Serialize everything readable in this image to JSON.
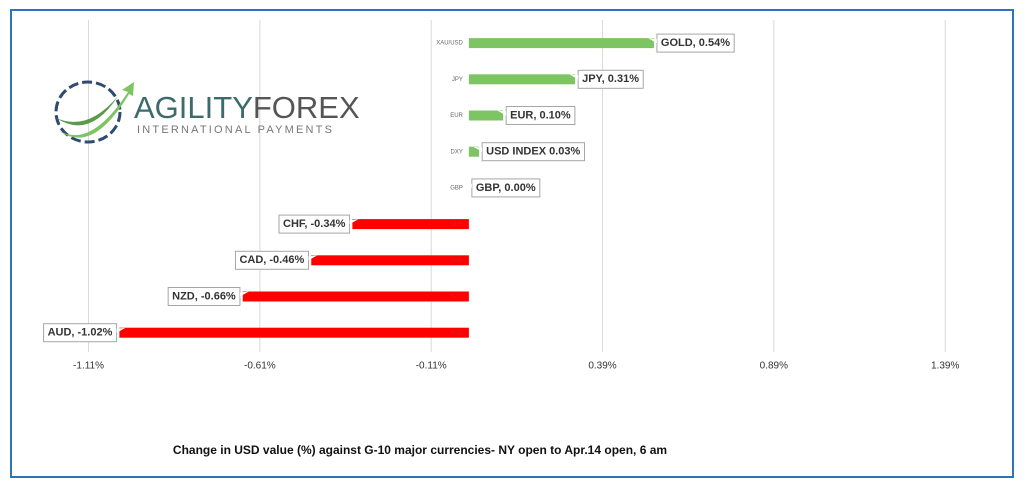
{
  "chart_data": {
    "type": "barh",
    "categories": [
      "XAU/USD",
      "JPY",
      "EUR",
      "DXY",
      "GBP",
      "CHF",
      "CAD",
      "NZD",
      "AUD"
    ],
    "values": [
      0.54,
      0.31,
      0.1,
      0.03,
      0.0,
      -0.34,
      -0.46,
      -0.66,
      -1.02
    ],
    "value_labels": [
      "GOLD, 0.54%",
      "JPY, 0.31%",
      "EUR, 0.10%",
      "USD INDEX 0.03%",
      "GBP, 0.00%",
      "CHF, -0.34%",
      "CAD, -0.46%",
      "NZD, -0.66%",
      "AUD, -1.02%"
    ],
    "color_positive": "#7dc462",
    "color_negative": "#ff0000",
    "xlim": [
      -1.31,
      1.55
    ],
    "xticks": [
      {
        "value": -1.11,
        "label": "-1.11%"
      },
      {
        "value": -0.61,
        "label": "-0.61%"
      },
      {
        "value": -0.11,
        "label": "-0.11%"
      },
      {
        "value": 0.39,
        "label": "0.39%"
      },
      {
        "value": 0.89,
        "label": "0.89%"
      },
      {
        "value": 1.39,
        "label": "1.39%"
      }
    ],
    "grid": true,
    "caption": "Change in  USD value (%)  against  G-10 major currencies-  NY open to Apr.14 open, 6 am"
  },
  "logo": {
    "wordmark": [
      "AGILITY",
      "FOREX"
    ],
    "tagline": "INTERNATIONAL PAYMENTS"
  }
}
